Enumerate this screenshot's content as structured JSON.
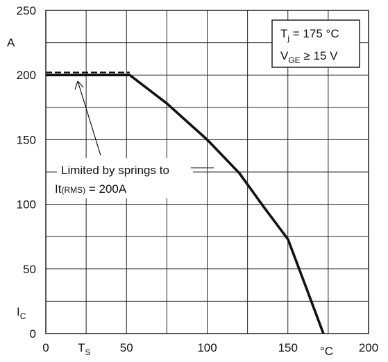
{
  "chart_data": {
    "type": "line",
    "x_axis": {
      "ticks": [
        0,
        50,
        100,
        150,
        200
      ],
      "unit_label": "°C",
      "symbol_main": "T",
      "symbol_sub": "S",
      "range": [
        0,
        200
      ]
    },
    "y_axis": {
      "ticks": [
        0,
        50,
        100,
        150,
        200,
        250
      ],
      "unit_label": "A",
      "symbol_main": "I",
      "symbol_sub": "C",
      "range": [
        0,
        250
      ]
    },
    "grid": true,
    "series": [
      {
        "style": "solid",
        "x": [
          0,
          52,
          75,
          100,
          120,
          135,
          150,
          160,
          172
        ],
        "y": [
          200,
          200,
          178,
          150,
          124,
          98,
          73,
          40,
          0
        ]
      },
      {
        "style": "dashed",
        "x": [
          0,
          52
        ],
        "y": [
          202,
          202
        ]
      }
    ],
    "legend_box": {
      "position": "top-right",
      "line1_main": "T",
      "line1_sub": "j",
      "line1_rest": " = 175 °C",
      "line2_main": "V",
      "line2_sub": "GE",
      "line2_rest": " ≥ 15 V"
    },
    "annotation": {
      "line1": "Limited by springs to",
      "line2_main": "It",
      "line2_sub": "(RMS)",
      "line2_rest": "  = 200A"
    }
  }
}
